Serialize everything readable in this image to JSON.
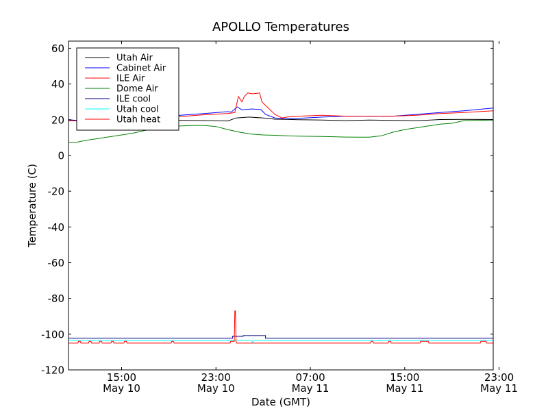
{
  "chart_data": {
    "type": "line",
    "title": "APOLLO Temperatures",
    "xlabel": "Date (GMT)",
    "ylabel": "Temperature (C)",
    "xlim": [
      10.5,
      46.5
    ],
    "ylim": [
      -120,
      64
    ],
    "y_ticks": [
      -120,
      -100,
      -80,
      -60,
      -40,
      -20,
      0,
      20,
      40,
      60
    ],
    "y_tick_labels": [
      "-120",
      "-100",
      "-80",
      "-60",
      "-40",
      "-20",
      "0",
      "20",
      "40",
      "60"
    ],
    "x_ticks": [
      {
        "x": 15,
        "time": "15:00",
        "date": "May 10"
      },
      {
        "x": 23,
        "time": "23:00",
        "date": "May 10"
      },
      {
        "x": 31,
        "time": "07:00",
        "date": "May 11"
      },
      {
        "x": 39,
        "time": "15:00",
        "date": "May 11"
      },
      {
        "x": 47,
        "time": "23:00",
        "date": "May 11"
      }
    ],
    "legend_position": "top-left",
    "series": [
      {
        "name": "Utah Air",
        "color": "#000000",
        "x": [
          10.5,
          12,
          14,
          16,
          18,
          20,
          22,
          24,
          24.7,
          25.8,
          27,
          28,
          29,
          30,
          32,
          34,
          36,
          38,
          40,
          42,
          44,
          46.5
        ],
        "y": [
          19.5,
          19.2,
          19.5,
          19.7,
          19.8,
          19.6,
          19.5,
          19.3,
          21,
          21.5,
          21,
          20.3,
          20.2,
          20,
          19.8,
          19.5,
          19.8,
          19.6,
          19.4,
          20.1,
          20.2,
          20.1
        ]
      },
      {
        "name": "Cabinet Air",
        "color": "#0000ff",
        "x": [
          10.5,
          12,
          14,
          16,
          18,
          20,
          22,
          24,
          24.3,
          24.8,
          25.2,
          26,
          26.8,
          27.2,
          28,
          29,
          30,
          32,
          34,
          36,
          38,
          40,
          42,
          44,
          46.5
        ],
        "y": [
          20,
          19.2,
          19.8,
          20.5,
          21.5,
          22.5,
          23.5,
          24.5,
          24.3,
          27.2,
          25.5,
          26,
          25.8,
          23,
          21,
          20.5,
          20.8,
          21.5,
          22,
          22,
          22,
          23,
          24,
          25,
          26.5
        ]
      },
      {
        "name": "ILE Air",
        "color": "#ff0000",
        "x": [
          10.5,
          12,
          14,
          16,
          18,
          20,
          22,
          24,
          24.6,
          24.9,
          25.2,
          25.4,
          25.7,
          26.1,
          26.7,
          26.9,
          27.2,
          28,
          28.6,
          29,
          30,
          32,
          34,
          36,
          38,
          40,
          42,
          44,
          46.5
        ],
        "y": [
          19.5,
          19.2,
          19.8,
          20.3,
          21,
          21.8,
          22.8,
          23.5,
          24,
          33,
          30,
          33,
          35,
          34.5,
          35,
          30,
          28,
          23,
          21,
          21.5,
          22,
          22.5,
          22,
          22,
          22,
          22.5,
          23.5,
          24,
          25
        ]
      },
      {
        "name": "Dome Air",
        "color": "#008000",
        "x": [
          10.5,
          11,
          12,
          13,
          14,
          15,
          16,
          17,
          18,
          19,
          20,
          21,
          22,
          23,
          24,
          25,
          26,
          27,
          28,
          29,
          30,
          31,
          32,
          33,
          34,
          35,
          36,
          37,
          38,
          39,
          40,
          41,
          42,
          43,
          44,
          45,
          46.5
        ],
        "y": [
          7.5,
          7.2,
          8.5,
          9.5,
          10.5,
          11.5,
          12.5,
          14,
          15.5,
          16.2,
          16.5,
          16.8,
          16.8,
          16.2,
          14.5,
          13,
          12,
          11.5,
          11.3,
          11,
          10.8,
          10.7,
          10.6,
          10.5,
          10.3,
          10.2,
          10.2,
          11,
          13,
          14.5,
          15.5,
          16.5,
          17.5,
          18,
          19.5,
          19.6,
          19.8
        ]
      },
      {
        "name": "ILE cool",
        "color": "#000080",
        "x": [
          10.5,
          24.4,
          24.4,
          25.3,
          25.3,
          27.2,
          27.2,
          46.5
        ],
        "y": [
          -102.3,
          -102.3,
          -101.2,
          -101.2,
          -100.8,
          -100.8,
          -102.3,
          -102.3
        ]
      },
      {
        "name": "Utah cool",
        "color": "#00ffff",
        "x": [
          10.5,
          26,
          26.1,
          26.2,
          46.5
        ],
        "y": [
          -103.5,
          -103.5,
          -104.5,
          -103.5,
          -103.5
        ]
      },
      {
        "name": "Utah heat",
        "color": "#ff0000",
        "x": [
          10.5,
          11.3,
          11.35,
          11.5,
          11.55,
          12.2,
          12.25,
          12.4,
          12.45,
          13.1,
          13.15,
          13.3,
          13.35,
          14.1,
          14.15,
          14.3,
          14.35,
          15.2,
          15.25,
          15.4,
          15.45,
          19.2,
          19.25,
          19.4,
          19.45,
          24.2,
          24.25,
          24.55,
          24.6,
          24.65,
          24.7,
          24.75,
          36.1,
          36.15,
          36.3,
          36.35,
          37.6,
          37.65,
          37.8,
          37.85,
          40.3,
          40.35,
          41.0,
          41.05,
          45.4,
          45.45,
          45.9,
          45.95,
          46.5
        ],
        "y": [
          -105,
          -105,
          -104,
          -104,
          -105,
          -105,
          -104,
          -104,
          -105,
          -105,
          -104,
          -104,
          -105,
          -105,
          -104,
          -104,
          -105,
          -105,
          -104,
          -104,
          -105,
          -105,
          -104,
          -104,
          -105,
          -105,
          -104,
          -104,
          -87,
          -87,
          -104,
          -105,
          -105,
          -104,
          -104,
          -105,
          -105,
          -104,
          -104,
          -105,
          -105,
          -104,
          -104,
          -105,
          -105,
          -104,
          -104,
          -105,
          -105
        ]
      }
    ]
  }
}
